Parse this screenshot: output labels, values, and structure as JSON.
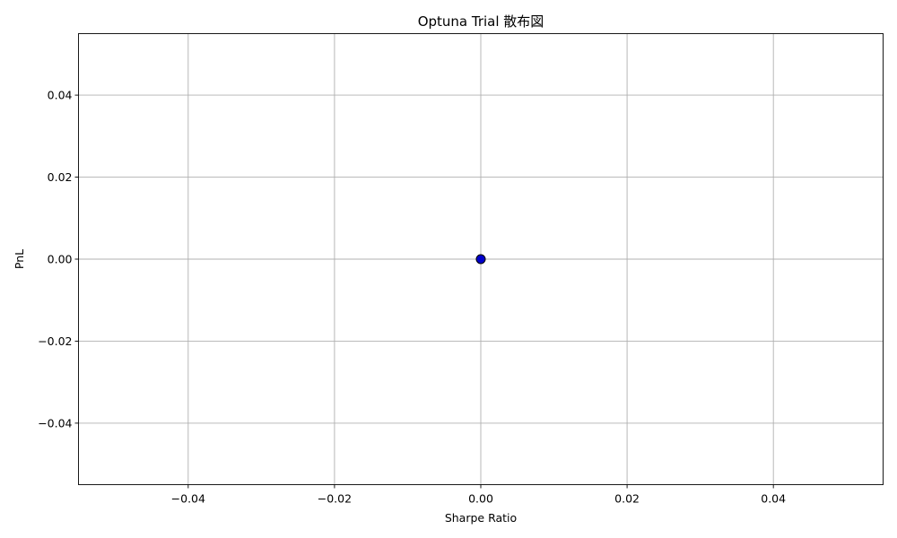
{
  "chart_data": {
    "type": "scatter",
    "title": "Optuna Trial 散布図",
    "xlabel": "Sharpe Ratio",
    "ylabel": "PnL",
    "xlim": [
      -0.055,
      0.055
    ],
    "ylim": [
      -0.055,
      0.055
    ],
    "x_ticks": [
      -0.04,
      -0.02,
      0.0,
      0.02,
      0.04
    ],
    "x_tick_labels": [
      "−0.04",
      "−0.02",
      "0.00",
      "0.02",
      "0.04"
    ],
    "y_ticks": [
      -0.04,
      -0.02,
      0.0,
      0.02,
      0.04
    ],
    "y_tick_labels": [
      "−0.04",
      "−0.02",
      "0.00",
      "0.02",
      "0.04"
    ],
    "grid": true,
    "points": [
      {
        "x": 0.0,
        "y": 0.0
      }
    ],
    "marker_color": "#0000cc",
    "marker_edge_color": "#000000"
  }
}
